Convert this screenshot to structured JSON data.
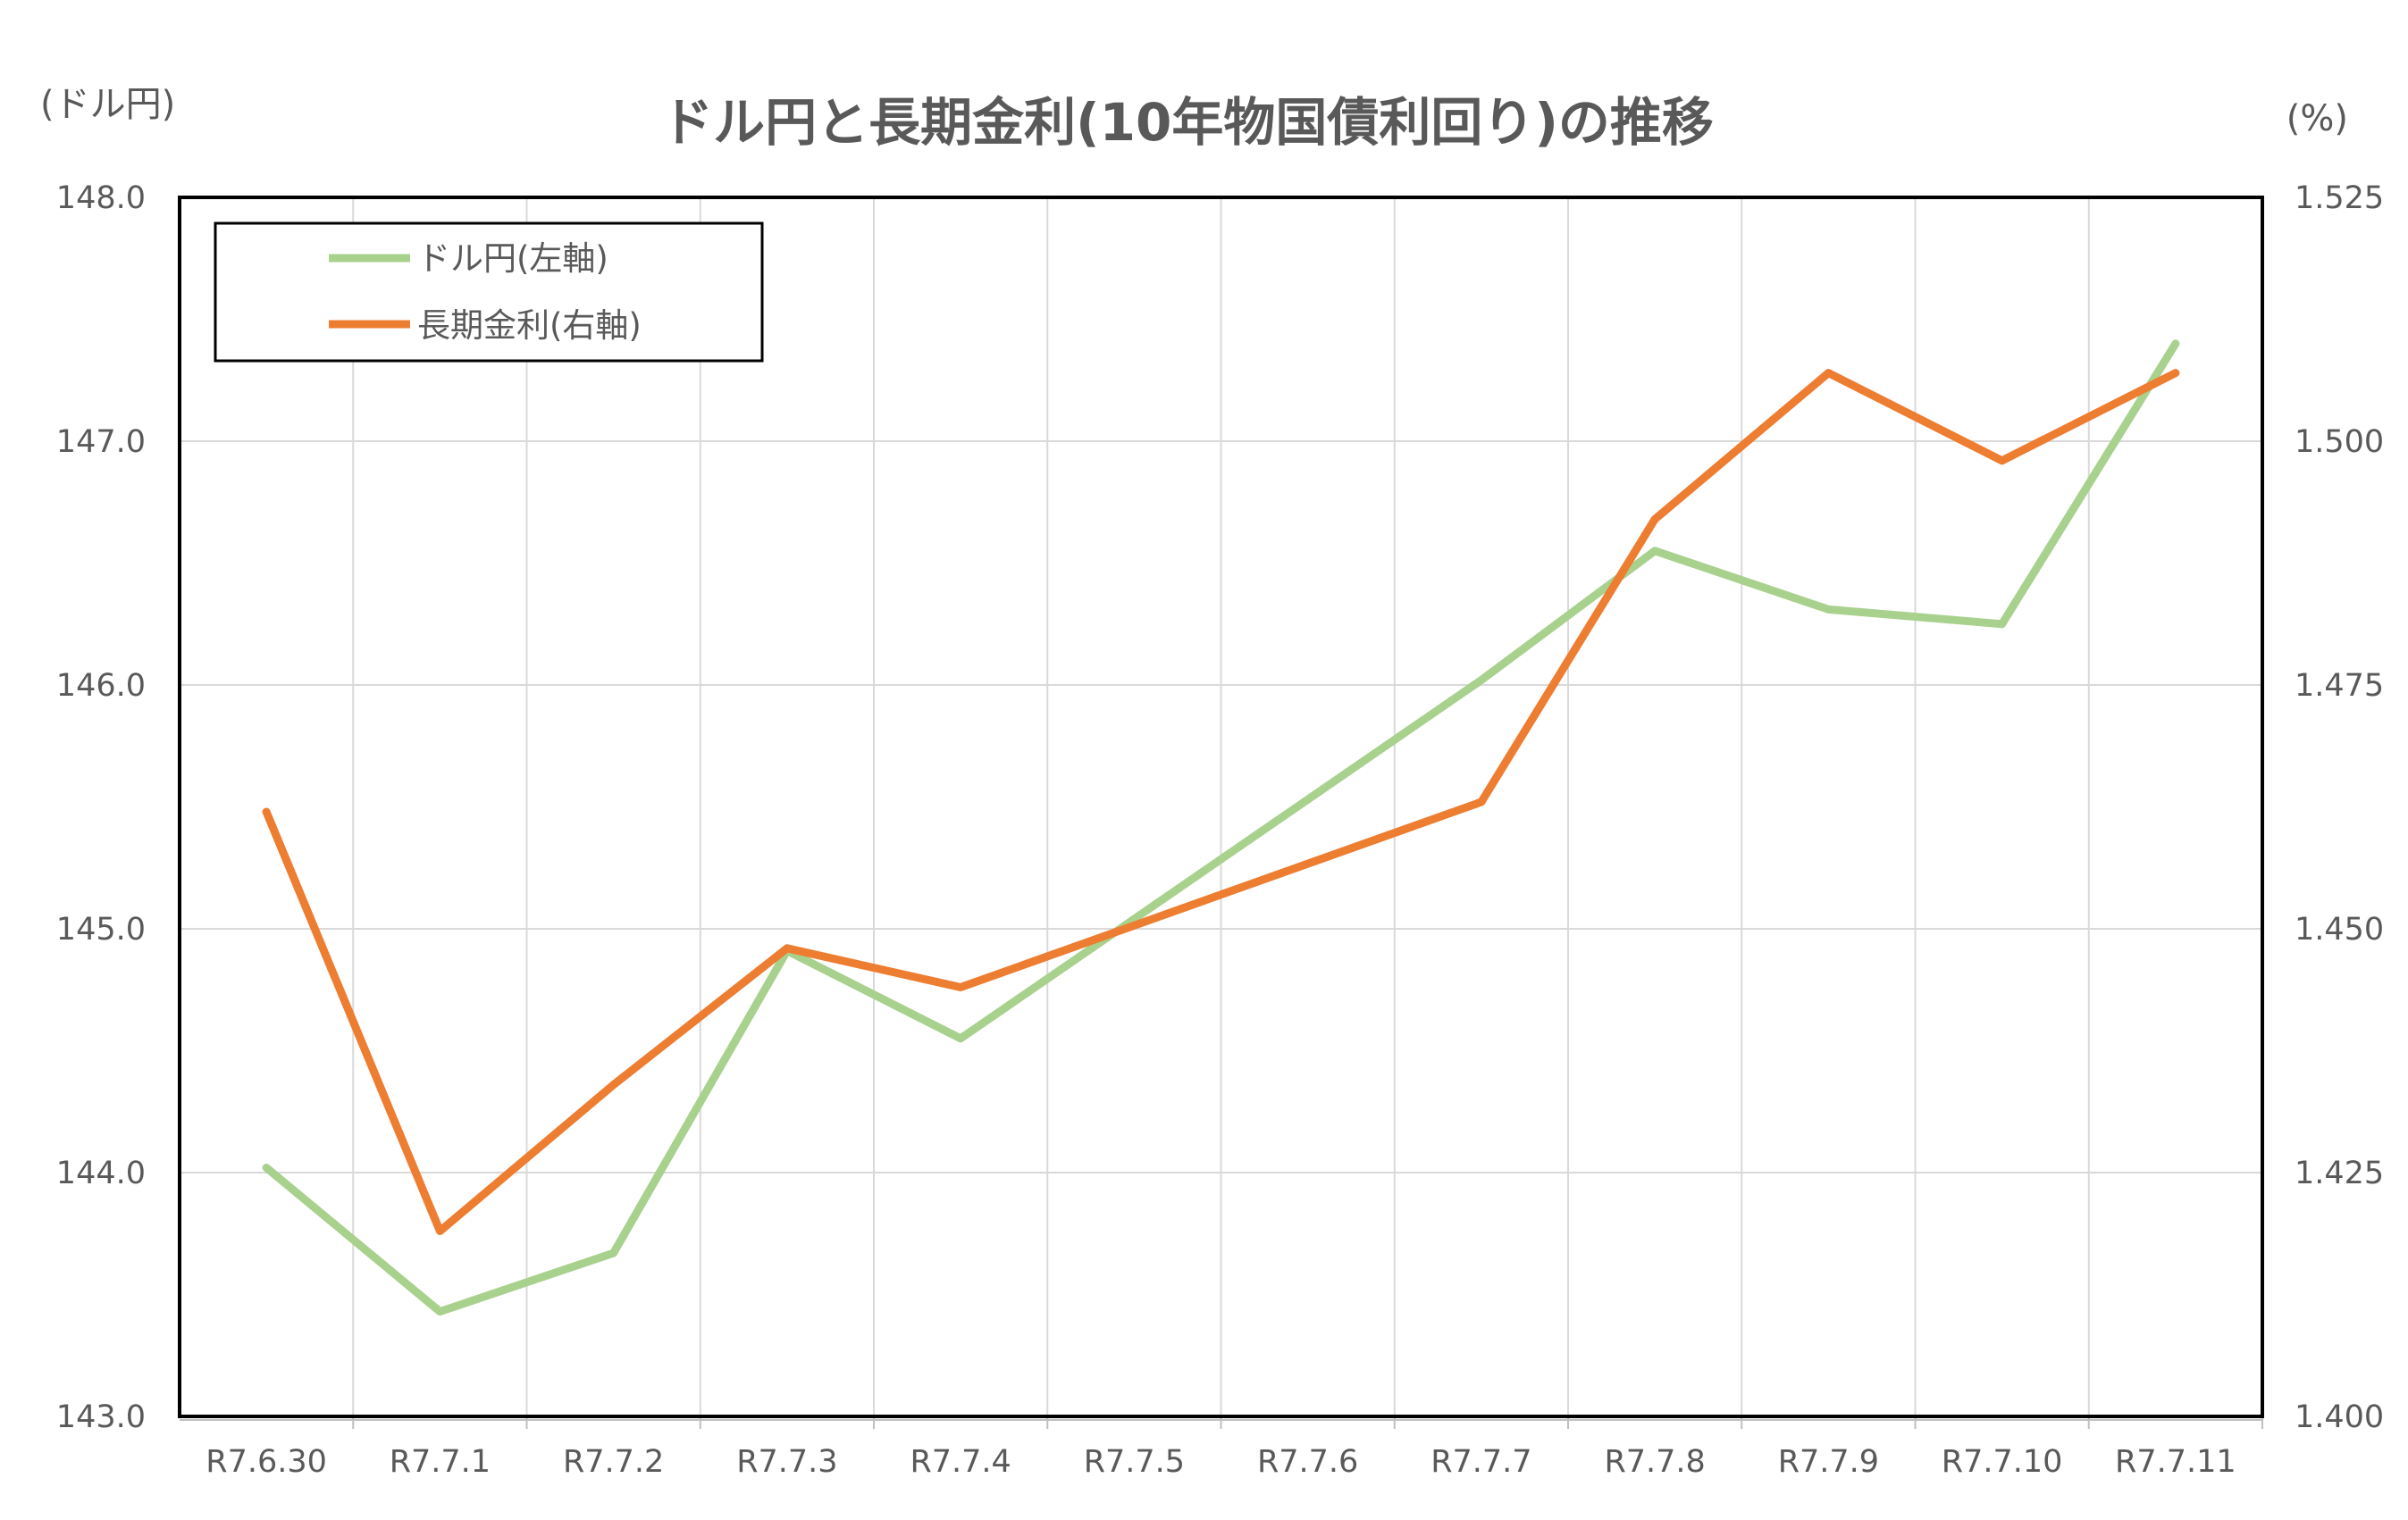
{
  "chart_data": {
    "type": "line",
    "title": "ドル円と長期金利(10年物国債利回り)の推移",
    "y_left_unit": "(ドル円)",
    "y_right_unit": "(%)",
    "categories": [
      "R7.6.30",
      "R7.7.1",
      "R7.7.2",
      "R7.7.3",
      "R7.7.4",
      "R7.7.5",
      "R7.7.6",
      "R7.7.7",
      "R7.7.8",
      "R7.7.9",
      "R7.7.10",
      "R7.7.11"
    ],
    "y_left": {
      "min": 143.0,
      "max": 148.0,
      "step": 1.0,
      "ticks": [
        "148.0",
        "147.0",
        "146.0",
        "145.0",
        "144.0",
        "143.0"
      ]
    },
    "y_right": {
      "min": 1.4,
      "max": 1.525,
      "step": 0.025,
      "ticks": [
        "1.525",
        "1.500",
        "1.475",
        "1.450",
        "1.425",
        "1.400"
      ]
    },
    "grid": true,
    "legend_position": "top-left",
    "series": [
      {
        "name": "ドル円(左軸)",
        "axis": "left",
        "color": "#a9d18e",
        "points": [
          {
            "x": 0,
            "y": 144.02
          },
          {
            "x": 1,
            "y": 143.43
          },
          {
            "x": 2,
            "y": 143.67
          },
          {
            "x": 3,
            "y": 144.91
          },
          {
            "x": 4,
            "y": 144.55
          },
          {
            "x": 7,
            "y": 146.02
          },
          {
            "x": 8,
            "y": 146.55
          },
          {
            "x": 9,
            "y": 146.31
          },
          {
            "x": 10,
            "y": 146.25
          },
          {
            "x": 11,
            "y": 147.4
          }
        ]
      },
      {
        "name": "長期金利(右軸)",
        "axis": "right",
        "color": "#ed7d31",
        "points": [
          {
            "x": 0,
            "y": 1.462
          },
          {
            "x": 1,
            "y": 1.419
          },
          {
            "x": 2,
            "y": 1.434
          },
          {
            "x": 3,
            "y": 1.448
          },
          {
            "x": 4,
            "y": 1.444
          },
          {
            "x": 7,
            "y": 1.463
          },
          {
            "x": 8,
            "y": 1.492
          },
          {
            "x": 9,
            "y": 1.507
          },
          {
            "x": 10,
            "y": 1.498
          },
          {
            "x": 11,
            "y": 1.507
          }
        ]
      }
    ]
  }
}
